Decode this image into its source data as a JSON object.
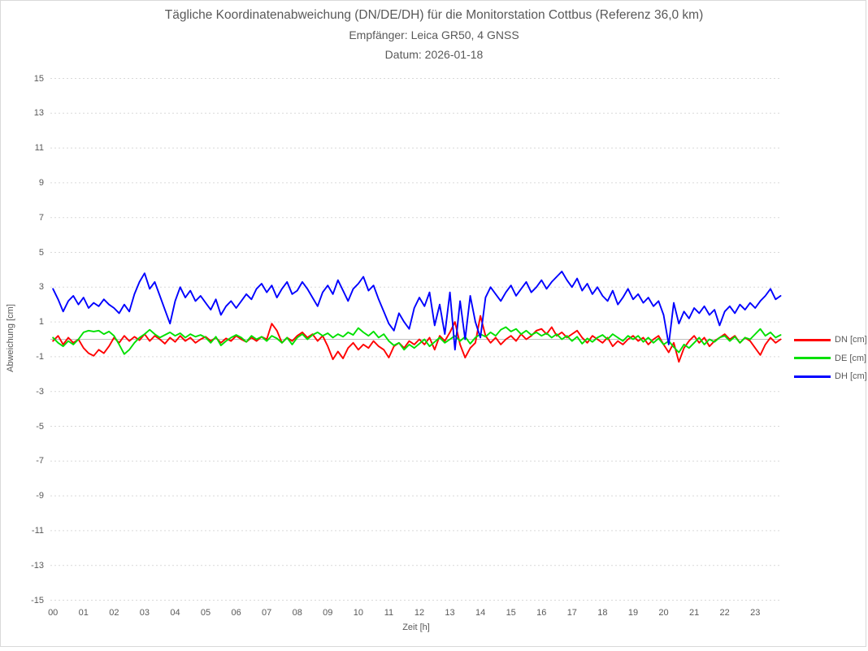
{
  "window": {
    "background_color": "#ffffff",
    "border_color": "#d9d9d9"
  },
  "title": {
    "line1": "Tägliche Koordinatenabweichung (DN/DE/DH) für die Monitorstation Cottbus (Referenz 36,0 km)",
    "line2": "Empfänger: Leica GR50, 4 GNSS",
    "line3": "Datum: 2026-01-18"
  },
  "axes": {
    "y_title": "Abweichung [cm]",
    "x_title": "Zeit [h]",
    "y_ticks": [
      15,
      13,
      11,
      9,
      7,
      5,
      3,
      1,
      -1,
      -3,
      -5,
      -7,
      -9,
      -11,
      -13,
      -15
    ],
    "x_ticks": [
      "00",
      "01",
      "02",
      "03",
      "04",
      "05",
      "06",
      "07",
      "08",
      "09",
      "10",
      "11",
      "12",
      "13",
      "14",
      "15",
      "16",
      "17",
      "18",
      "19",
      "20",
      "21",
      "22",
      "23"
    ],
    "text_color": "#595959",
    "gridline_color": "#d9d9d9",
    "zero_line_color": "#bfbfbf"
  },
  "legend": {
    "position": "right",
    "items": [
      {
        "label": "DN [cm]",
        "color": "#ff0000"
      },
      {
        "label": "DE [cm]",
        "color": "#00e000"
      },
      {
        "label": "DH [cm]",
        "color": "#0000ff"
      }
    ]
  },
  "chart_data": {
    "type": "line",
    "title": "Tägliche Koordinatenabweichung (DN/DE/DH) für die Monitorstation Cottbus (Referenz 36,0 km)",
    "subtitle": [
      "Empfänger: Leica GR50, 4 GNSS",
      "Datum: 2026-01-18"
    ],
    "xlabel": "Zeit [h]",
    "ylabel": "Abweichung [cm]",
    "xlim": [
      0,
      24
    ],
    "ylim": [
      -15,
      15
    ],
    "y_tick_interval": 2,
    "x_tick_labels": [
      "00",
      "01",
      "02",
      "03",
      "04",
      "05",
      "06",
      "07",
      "08",
      "09",
      "10",
      "11",
      "12",
      "13",
      "14",
      "15",
      "16",
      "17",
      "18",
      "19",
      "20",
      "21",
      "22",
      "23"
    ],
    "grid": "horizontal-dotted",
    "legend_position": "right",
    "sample_interval_minutes": 10,
    "series": [
      {
        "name": "DN [cm]",
        "color": "#ff0000",
        "values": [
          -0.1,
          0.2,
          -0.3,
          0.1,
          -0.2,
          0.0,
          -0.5,
          -0.8,
          -0.95,
          -0.6,
          -0.8,
          -0.4,
          0.1,
          -0.2,
          0.2,
          -0.1,
          0.15,
          -0.05,
          0.3,
          -0.1,
          0.2,
          0.0,
          -0.25,
          0.1,
          -0.15,
          0.2,
          -0.1,
          0.1,
          -0.2,
          0.0,
          0.15,
          -0.1,
          0.1,
          -0.2,
          0.05,
          -0.1,
          0.2,
          0.0,
          -0.15,
          0.1,
          -0.1,
          0.15,
          0.0,
          0.9,
          0.5,
          -0.2,
          0.1,
          -0.1,
          0.2,
          0.4,
          0.1,
          0.3,
          -0.1,
          0.2,
          -0.4,
          -1.15,
          -0.7,
          -1.1,
          -0.5,
          -0.2,
          -0.6,
          -0.3,
          -0.5,
          -0.1,
          -0.4,
          -0.6,
          -1.05,
          -0.4,
          -0.2,
          -0.5,
          -0.1,
          -0.3,
          0.0,
          -0.3,
          0.1,
          -0.6,
          0.2,
          -0.1,
          0.4,
          1.0,
          -0.3,
          -1.05,
          -0.5,
          -0.2,
          1.35,
          0.2,
          -0.2,
          0.1,
          -0.3,
          0.0,
          0.2,
          -0.1,
          0.3,
          0.0,
          0.2,
          0.5,
          0.6,
          0.3,
          0.7,
          0.2,
          0.4,
          0.1,
          0.3,
          0.5,
          0.1,
          -0.2,
          0.2,
          0.0,
          -0.2,
          0.1,
          -0.4,
          -0.1,
          -0.3,
          0.0,
          0.2,
          -0.1,
          0.1,
          -0.3,
          0.0,
          0.2,
          -0.3,
          -0.75,
          -0.2,
          -1.3,
          -0.5,
          -0.1,
          0.2,
          -0.2,
          0.1,
          -0.4,
          -0.1,
          0.1,
          0.3,
          0.0,
          0.2,
          -0.2,
          0.1,
          -0.1,
          -0.5,
          -0.9,
          -0.3,
          0.1,
          -0.2,
          0.0
        ]
      },
      {
        "name": "DE [cm]",
        "color": "#00e000",
        "values": [
          0.1,
          -0.2,
          -0.4,
          -0.1,
          -0.3,
          0.0,
          0.4,
          0.5,
          0.45,
          0.5,
          0.3,
          0.45,
          0.2,
          -0.3,
          -0.85,
          -0.6,
          -0.2,
          0.1,
          0.3,
          0.55,
          0.3,
          0.1,
          0.25,
          0.4,
          0.2,
          0.35,
          0.1,
          0.3,
          0.15,
          0.25,
          0.1,
          -0.2,
          0.15,
          -0.35,
          -0.1,
          0.1,
          0.25,
          0.1,
          -0.15,
          0.2,
          0.0,
          0.15,
          -0.1,
          0.2,
          0.05,
          -0.2,
          0.1,
          -0.3,
          0.1,
          0.3,
          0.0,
          0.25,
          0.4,
          0.2,
          0.35,
          0.1,
          0.3,
          0.15,
          0.4,
          0.25,
          0.65,
          0.4,
          0.2,
          0.45,
          0.1,
          0.3,
          -0.1,
          -0.35,
          -0.2,
          -0.6,
          -0.3,
          -0.5,
          -0.25,
          0.0,
          -0.4,
          -0.15,
          0.1,
          -0.2,
          0.0,
          0.2,
          -0.1,
          0.15,
          -0.25,
          0.1,
          0.3,
          0.15,
          0.4,
          0.2,
          0.55,
          0.7,
          0.45,
          0.6,
          0.3,
          0.5,
          0.25,
          0.4,
          0.2,
          0.35,
          0.1,
          0.3,
          0.0,
          0.2,
          -0.1,
          0.15,
          -0.25,
          0.05,
          -0.15,
          0.1,
          0.25,
          0.0,
          0.3,
          0.1,
          -0.1,
          0.2,
          0.0,
          0.2,
          -0.15,
          0.1,
          -0.2,
          0.05,
          -0.3,
          -0.1,
          -0.45,
          -0.75,
          -0.3,
          -0.5,
          -0.2,
          0.1,
          -0.3,
          0.0,
          -0.15,
          0.1,
          0.2,
          -0.1,
          0.15,
          -0.2,
          0.1,
          0.0,
          0.3,
          0.6,
          0.2,
          0.4,
          0.1,
          0.25
        ]
      },
      {
        "name": "DH [cm]",
        "color": "#0000ff",
        "values": [
          2.9,
          2.3,
          1.6,
          2.2,
          2.5,
          2.0,
          2.4,
          1.8,
          2.1,
          1.9,
          2.3,
          2.0,
          1.8,
          1.5,
          2.0,
          1.6,
          2.6,
          3.3,
          3.8,
          2.9,
          3.3,
          2.5,
          1.7,
          0.9,
          2.2,
          3.0,
          2.4,
          2.8,
          2.2,
          2.5,
          2.1,
          1.7,
          2.3,
          1.4,
          1.9,
          2.2,
          1.8,
          2.2,
          2.6,
          2.3,
          2.9,
          3.2,
          2.7,
          3.1,
          2.4,
          2.9,
          3.3,
          2.6,
          2.8,
          3.3,
          2.9,
          2.4,
          1.9,
          2.7,
          3.1,
          2.6,
          3.4,
          2.8,
          2.2,
          2.9,
          3.2,
          3.6,
          2.8,
          3.1,
          2.3,
          1.6,
          0.9,
          0.5,
          1.5,
          1.0,
          0.6,
          1.8,
          2.4,
          1.9,
          2.7,
          0.8,
          2.0,
          0.3,
          2.7,
          -0.6,
          2.2,
          0.0,
          2.5,
          1.0,
          0.1,
          2.4,
          3.0,
          2.6,
          2.2,
          2.7,
          3.1,
          2.5,
          2.9,
          3.3,
          2.7,
          3.0,
          3.4,
          2.9,
          3.3,
          3.6,
          3.9,
          3.4,
          3.0,
          3.5,
          2.8,
          3.2,
          2.6,
          3.0,
          2.5,
          2.2,
          2.8,
          2.0,
          2.4,
          2.9,
          2.3,
          2.6,
          2.1,
          2.4,
          1.9,
          2.2,
          1.4,
          -0.3,
          2.1,
          0.9,
          1.6,
          1.2,
          1.8,
          1.5,
          1.9,
          1.4,
          1.7,
          0.8,
          1.6,
          1.9,
          1.5,
          2.0,
          1.7,
          2.1,
          1.8,
          2.2,
          2.5,
          2.9,
          2.3,
          2.5
        ]
      }
    ]
  }
}
